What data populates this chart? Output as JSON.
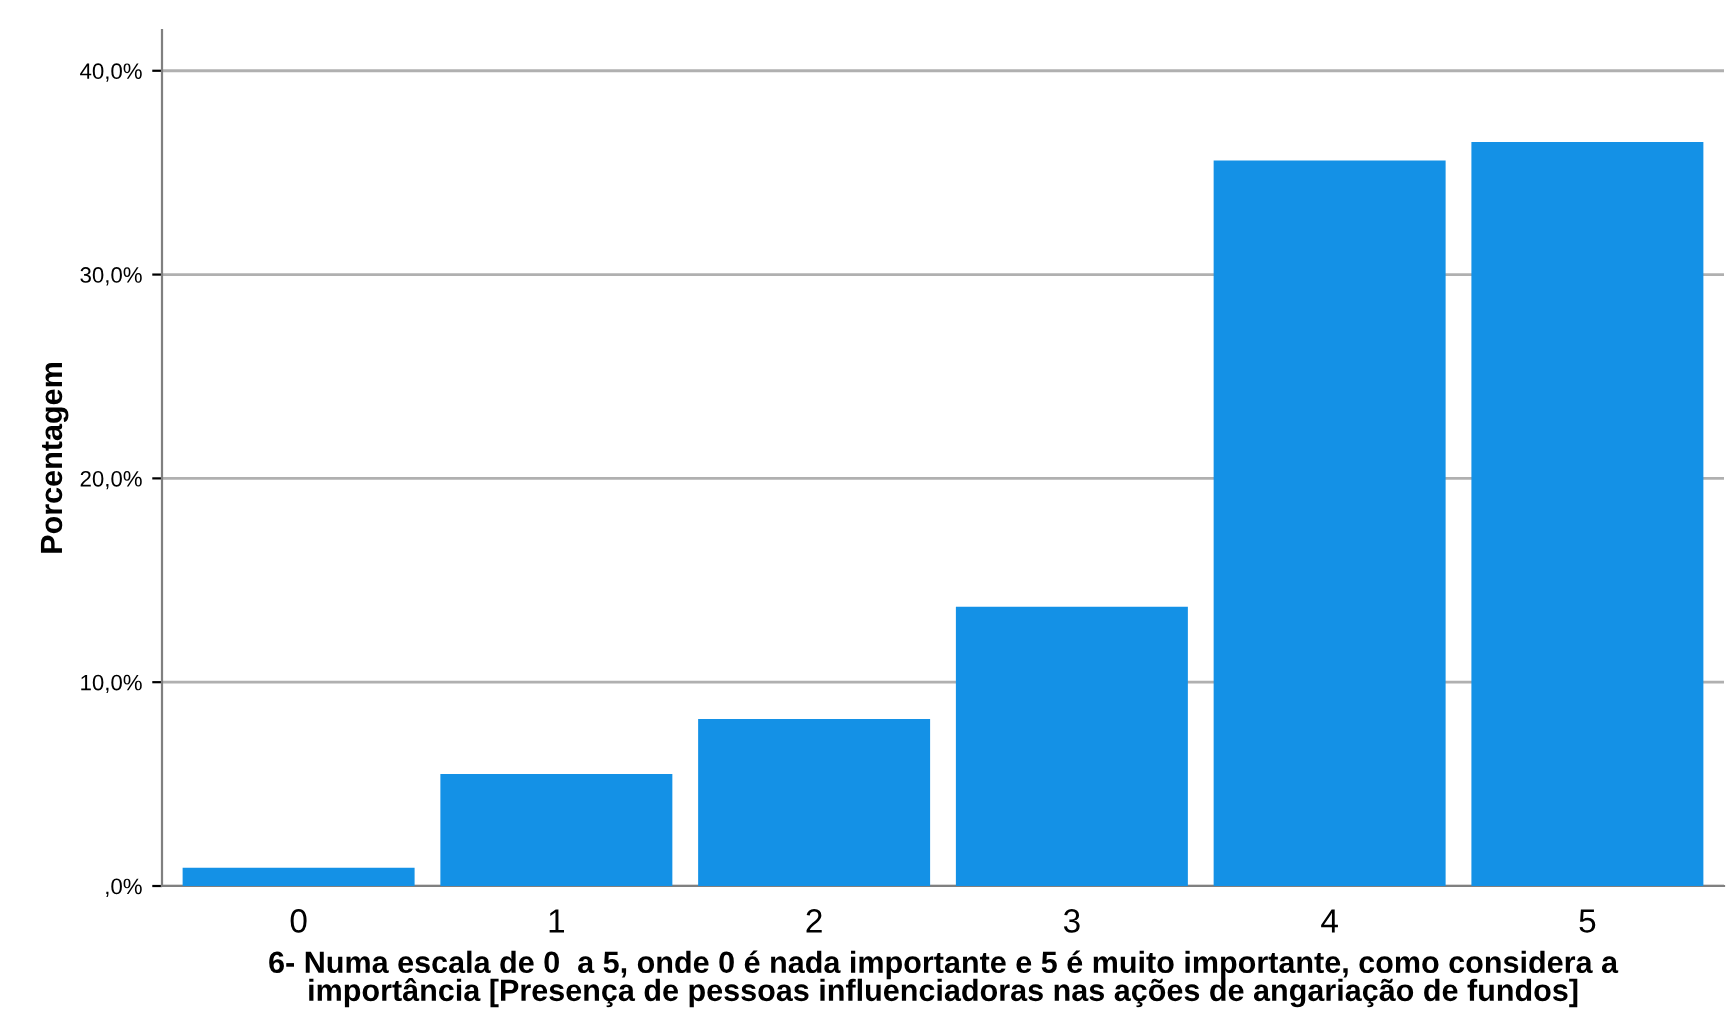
{
  "chart_data": {
    "type": "bar",
    "xlabel": "6- Numa escala de 0  a 5, onde 0 é nada importante e 5 é muito importante, como considera a\nimportância [Presença de pessoas influenciadoras nas ações de angariação de fundos]",
    "ylabel": "Porcentagem",
    "categories": [
      "0",
      "1",
      "2",
      "3",
      "4",
      "5"
    ],
    "values": [
      0.9,
      5.5,
      8.2,
      13.7,
      35.6,
      36.5
    ],
    "color": "#1491e6",
    "ylim": [
      0,
      42
    ],
    "yticks": [
      {
        "value": 0,
        "label": ",0%"
      },
      {
        "value": 10,
        "label": "10,0%"
      },
      {
        "value": 20,
        "label": "20,0%"
      },
      {
        "value": 30,
        "label": "30,0%"
      },
      {
        "value": 40,
        "label": "40,0%"
      }
    ],
    "grid": "y",
    "legend": false
  }
}
